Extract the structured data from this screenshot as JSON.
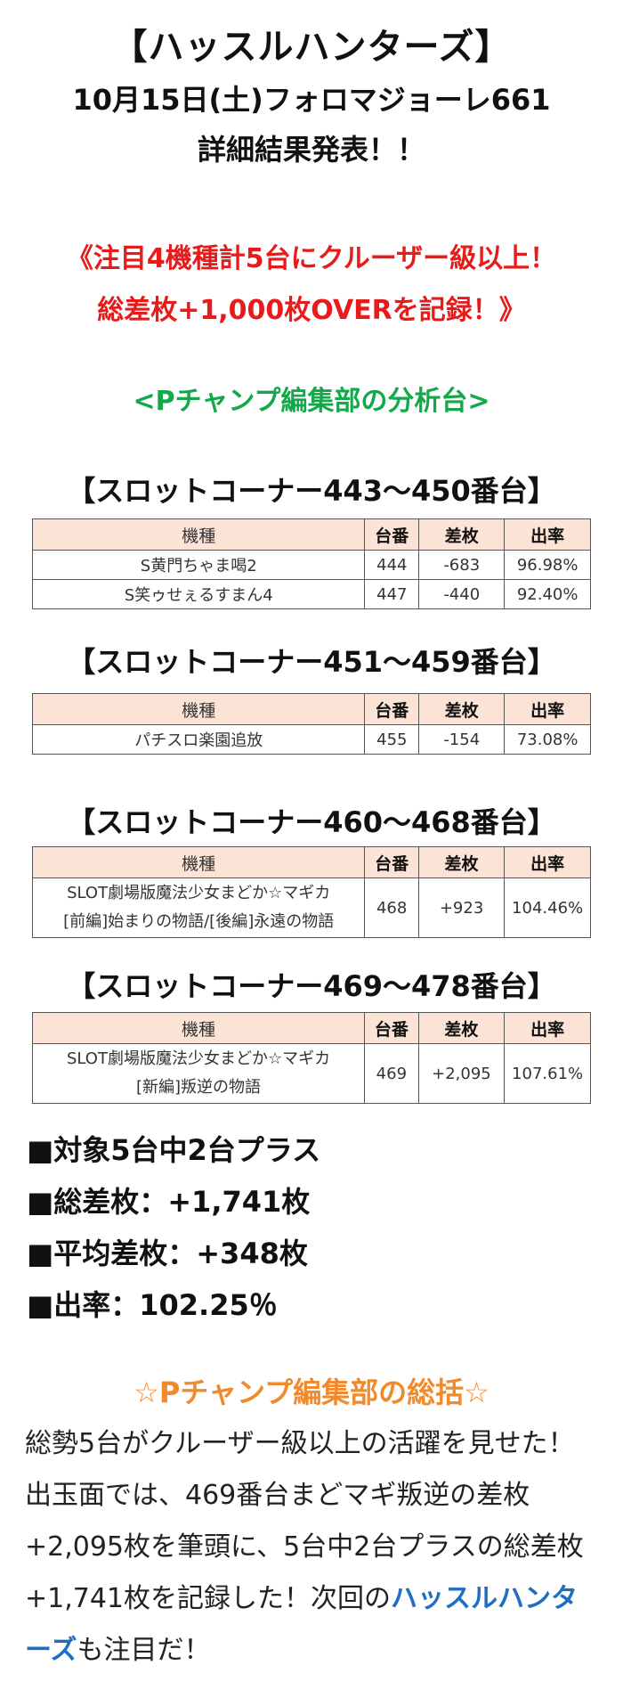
{
  "header": {
    "title": "【ハッスルハンターズ】",
    "line2": "10月15日(土)フォロマジョーレ661",
    "line3": "詳細結果発表！！"
  },
  "highlight": {
    "line1": "《注目4機種計5台にクルーザー級以上！",
    "line2": "総差枚+1,000枚OVERを記録！》"
  },
  "analysis_label": "<Pチャンプ編集部の分析台>",
  "table_headers": {
    "model": "機種",
    "number": "台番",
    "diff": "差枚",
    "rate": "出率"
  },
  "sections": [
    {
      "title": "【スロットコーナー443～450番台】",
      "rows": [
        {
          "model": "S黄門ちゃま喝2",
          "number": "444",
          "diff": "-683",
          "rate": "96.98%"
        },
        {
          "model": "S笑ゥせぇるすまん4",
          "number": "447",
          "diff": "-440",
          "rate": "92.40%"
        }
      ]
    },
    {
      "title": "【スロットコーナー451～459番台】",
      "rows": [
        {
          "model": "パチスロ楽園追放",
          "number": "455",
          "diff": "-154",
          "rate": "73.08%"
        }
      ]
    },
    {
      "title": "【スロットコーナー460～468番台】",
      "rows": [
        {
          "model_line1": "SLOT劇場版魔法少女まどか☆マギカ",
          "model_line2": "[前編]始まりの物語/[後編]永遠の物語",
          "number": "468",
          "diff": "+923",
          "rate": "104.46%"
        }
      ]
    },
    {
      "title": "【スロットコーナー469～478番台】",
      "rows": [
        {
          "model_line1": "SLOT劇場版魔法少女まどか☆マギカ",
          "model_line2": "[新編]叛逆の物語",
          "number": "469",
          "diff": "+2,095",
          "rate": "107.61%"
        }
      ]
    }
  ],
  "summary": [
    "■対象5台中2台プラス",
    "■総差枚：+1,741枚",
    "■平均差枚：+348枚",
    "■出率：102.25％"
  ],
  "review": {
    "title": "☆Pチャンプ編集部の総括☆",
    "text": "総勢5台がクルーザー級以上の活躍を見せた！出玉面では、469番台まどマギ叛逆の差枚+2,095枚を筆頭に、5台中2台プラスの総差枚+1,741枚を記録した！次回の",
    "highlight": "ハッスルハンターズ",
    "tail": "も注目だ！"
  },
  "colors": {
    "red": "#e81b1b",
    "green": "#13a84a",
    "orange": "#f08a2c",
    "blue": "#1e6fc4",
    "table_header_bg": "#fbe4d5"
  }
}
